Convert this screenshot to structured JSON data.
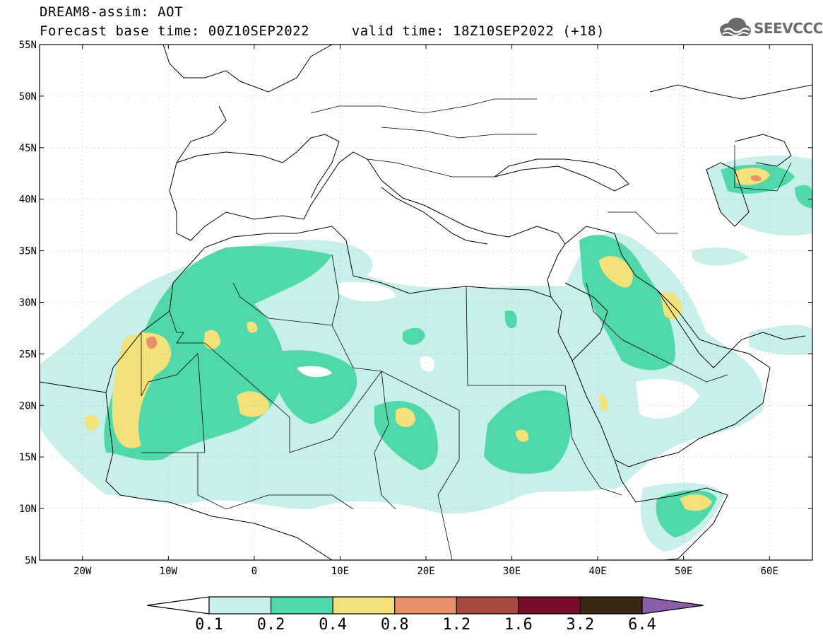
{
  "header": {
    "title": "DREAM8-assim: AOT",
    "base_label": "Forecast base time: 00Z10SEP2022",
    "valid_label": "valid time: 18Z10SEP2022 (+18)"
  },
  "logo": {
    "text": "SEEVCCC",
    "icon": "cloud-icon"
  },
  "map": {
    "lon_range": [
      -25,
      65
    ],
    "lat_range": [
      5,
      55
    ],
    "lon_ticks": [
      {
        "value": -20,
        "label": "20W"
      },
      {
        "value": -10,
        "label": "10W"
      },
      {
        "value": 0,
        "label": "0"
      },
      {
        "value": 10,
        "label": "10E"
      },
      {
        "value": 20,
        "label": "20E"
      },
      {
        "value": 30,
        "label": "30E"
      },
      {
        "value": 40,
        "label": "40E"
      },
      {
        "value": 50,
        "label": "50E"
      },
      {
        "value": 60,
        "label": "60E"
      }
    ],
    "lat_ticks": [
      {
        "value": 55,
        "label": "55N"
      },
      {
        "value": 50,
        "label": "50N"
      },
      {
        "value": 45,
        "label": "45N"
      },
      {
        "value": 40,
        "label": "40N"
      },
      {
        "value": 35,
        "label": "35N"
      },
      {
        "value": 30,
        "label": "30N"
      },
      {
        "value": 25,
        "label": "25N"
      },
      {
        "value": 20,
        "label": "20N"
      },
      {
        "value": 15,
        "label": "15N"
      },
      {
        "value": 10,
        "label": "10N"
      },
      {
        "value": 5,
        "label": "5N"
      }
    ],
    "grid": true,
    "colors": {
      "c0": "#c7f0ea",
      "c1": "#4fd8aa",
      "c2": "#f3e27a",
      "c3": "#e9906a",
      "c4": "#a94a3e",
      "c5": "#7a0d2c",
      "c6": "#3a2814",
      "c7": "#8a5fa8"
    }
  },
  "colorbar": {
    "labels": [
      "0.1",
      "0.2",
      "0.4",
      "0.8",
      "1.2",
      "1.6",
      "3.2",
      "6.4"
    ],
    "colors": [
      "#c7f0ea",
      "#4fd8aa",
      "#f3e27a",
      "#e9906a",
      "#a94a3e",
      "#7a0d2c",
      "#3a2814"
    ],
    "under_color": "#ffffff",
    "over_color": "#8a5fa8"
  }
}
